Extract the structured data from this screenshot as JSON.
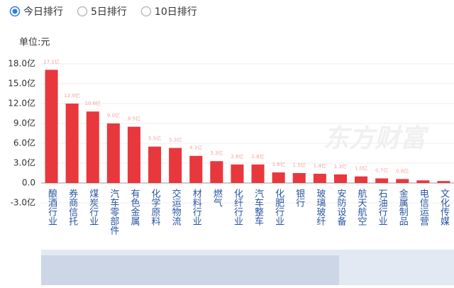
{
  "controls": {
    "options": [
      "今日排行",
      "5日排行",
      "10日排行"
    ],
    "selected": 0
  },
  "chart_data": {
    "type": "bar",
    "unit_label": "单位:元",
    "watermark": "东方财富",
    "categories": [
      "酿酒行业",
      "券商信托",
      "煤炭行业",
      "汽车零部件",
      "有色金属",
      "化学原料",
      "交运物流",
      "材料行业",
      "燃气",
      "化纤行业",
      "汽车整车",
      "化肥行业",
      "银行",
      "玻璃玻纤",
      "安防设备",
      "航天航空",
      "石油行业",
      "金属制品",
      "电信运营",
      "文化传媒"
    ],
    "values": [
      17.1,
      12.0,
      10.8,
      9.0,
      8.5,
      5.5,
      5.3,
      4.1,
      3.3,
      2.8,
      2.8,
      1.6,
      1.5,
      1.4,
      1.3,
      1.0,
      0.7,
      0.6,
      0.4,
      0.3
    ],
    "value_labels": [
      "17.1亿",
      "12.0亿",
      "10.8亿",
      "9.0亿",
      "8.5亿",
      "5.5亿",
      "5.3亿",
      "4.1亿",
      "3.3亿",
      "2.8亿",
      "2.8亿",
      "1.6亿",
      "1.5亿",
      "1.4亿",
      "1.3亿",
      "1.0亿",
      "0.7亿",
      "0.6亿",
      null,
      null
    ],
    "color": "#e8383d",
    "label_color": "#f3a3a3",
    "ylim": [
      -3,
      18
    ],
    "yticks": [
      {
        "value": -3,
        "label": "-3.0亿"
      },
      {
        "value": 0,
        "label": "0.0"
      },
      {
        "value": 3,
        "label": "3.0亿"
      },
      {
        "value": 6,
        "label": "6.0亿"
      },
      {
        "value": 9,
        "label": "9.0亿"
      },
      {
        "value": 12,
        "label": "12.0亿"
      },
      {
        "value": 15,
        "label": "15.0亿"
      },
      {
        "value": 18,
        "label": "18.0亿"
      }
    ],
    "grid": true
  }
}
